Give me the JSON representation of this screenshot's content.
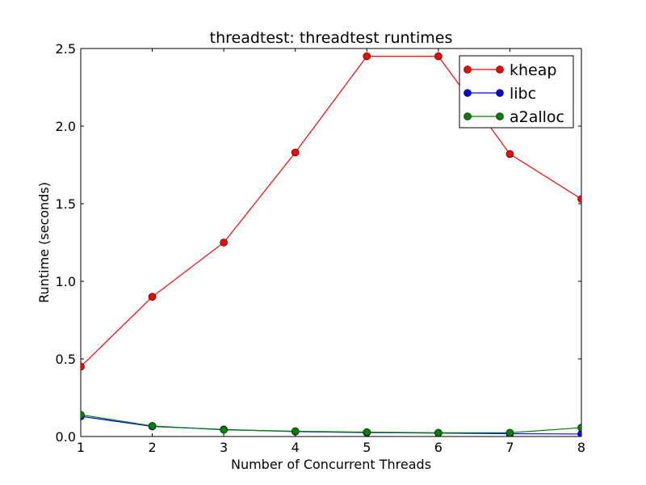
{
  "chart_data": {
    "type": "line",
    "title": "threadtest: threadtest runtimes",
    "xlabel": "Number of Concurrent Threads",
    "ylabel": "Runtime (seconds)",
    "xlim": [
      1,
      8
    ],
    "ylim": [
      0.0,
      2.5
    ],
    "xticks": [
      "1",
      "2",
      "3",
      "4",
      "5",
      "6",
      "7",
      "8"
    ],
    "yticks": [
      "0.0",
      "0.5",
      "1.0",
      "1.5",
      "2.0",
      "2.5"
    ],
    "x": [
      1,
      2,
      3,
      4,
      5,
      6,
      7,
      8
    ],
    "grid": false,
    "legend_position": "top-right",
    "series": [
      {
        "name": "kheap",
        "color": "#ff0000",
        "values": [
          0.45,
          0.9,
          1.25,
          1.83,
          2.45,
          2.45,
          1.82,
          1.53
        ]
      },
      {
        "name": "libc",
        "color": "#0000ff",
        "values": [
          0.13,
          0.065,
          0.045,
          0.032,
          0.025,
          0.022,
          0.018,
          0.016
        ]
      },
      {
        "name": "a2alloc",
        "color": "#008000",
        "values": [
          0.14,
          0.068,
          0.043,
          0.034,
          0.028,
          0.024,
          0.024,
          0.057
        ]
      }
    ]
  }
}
